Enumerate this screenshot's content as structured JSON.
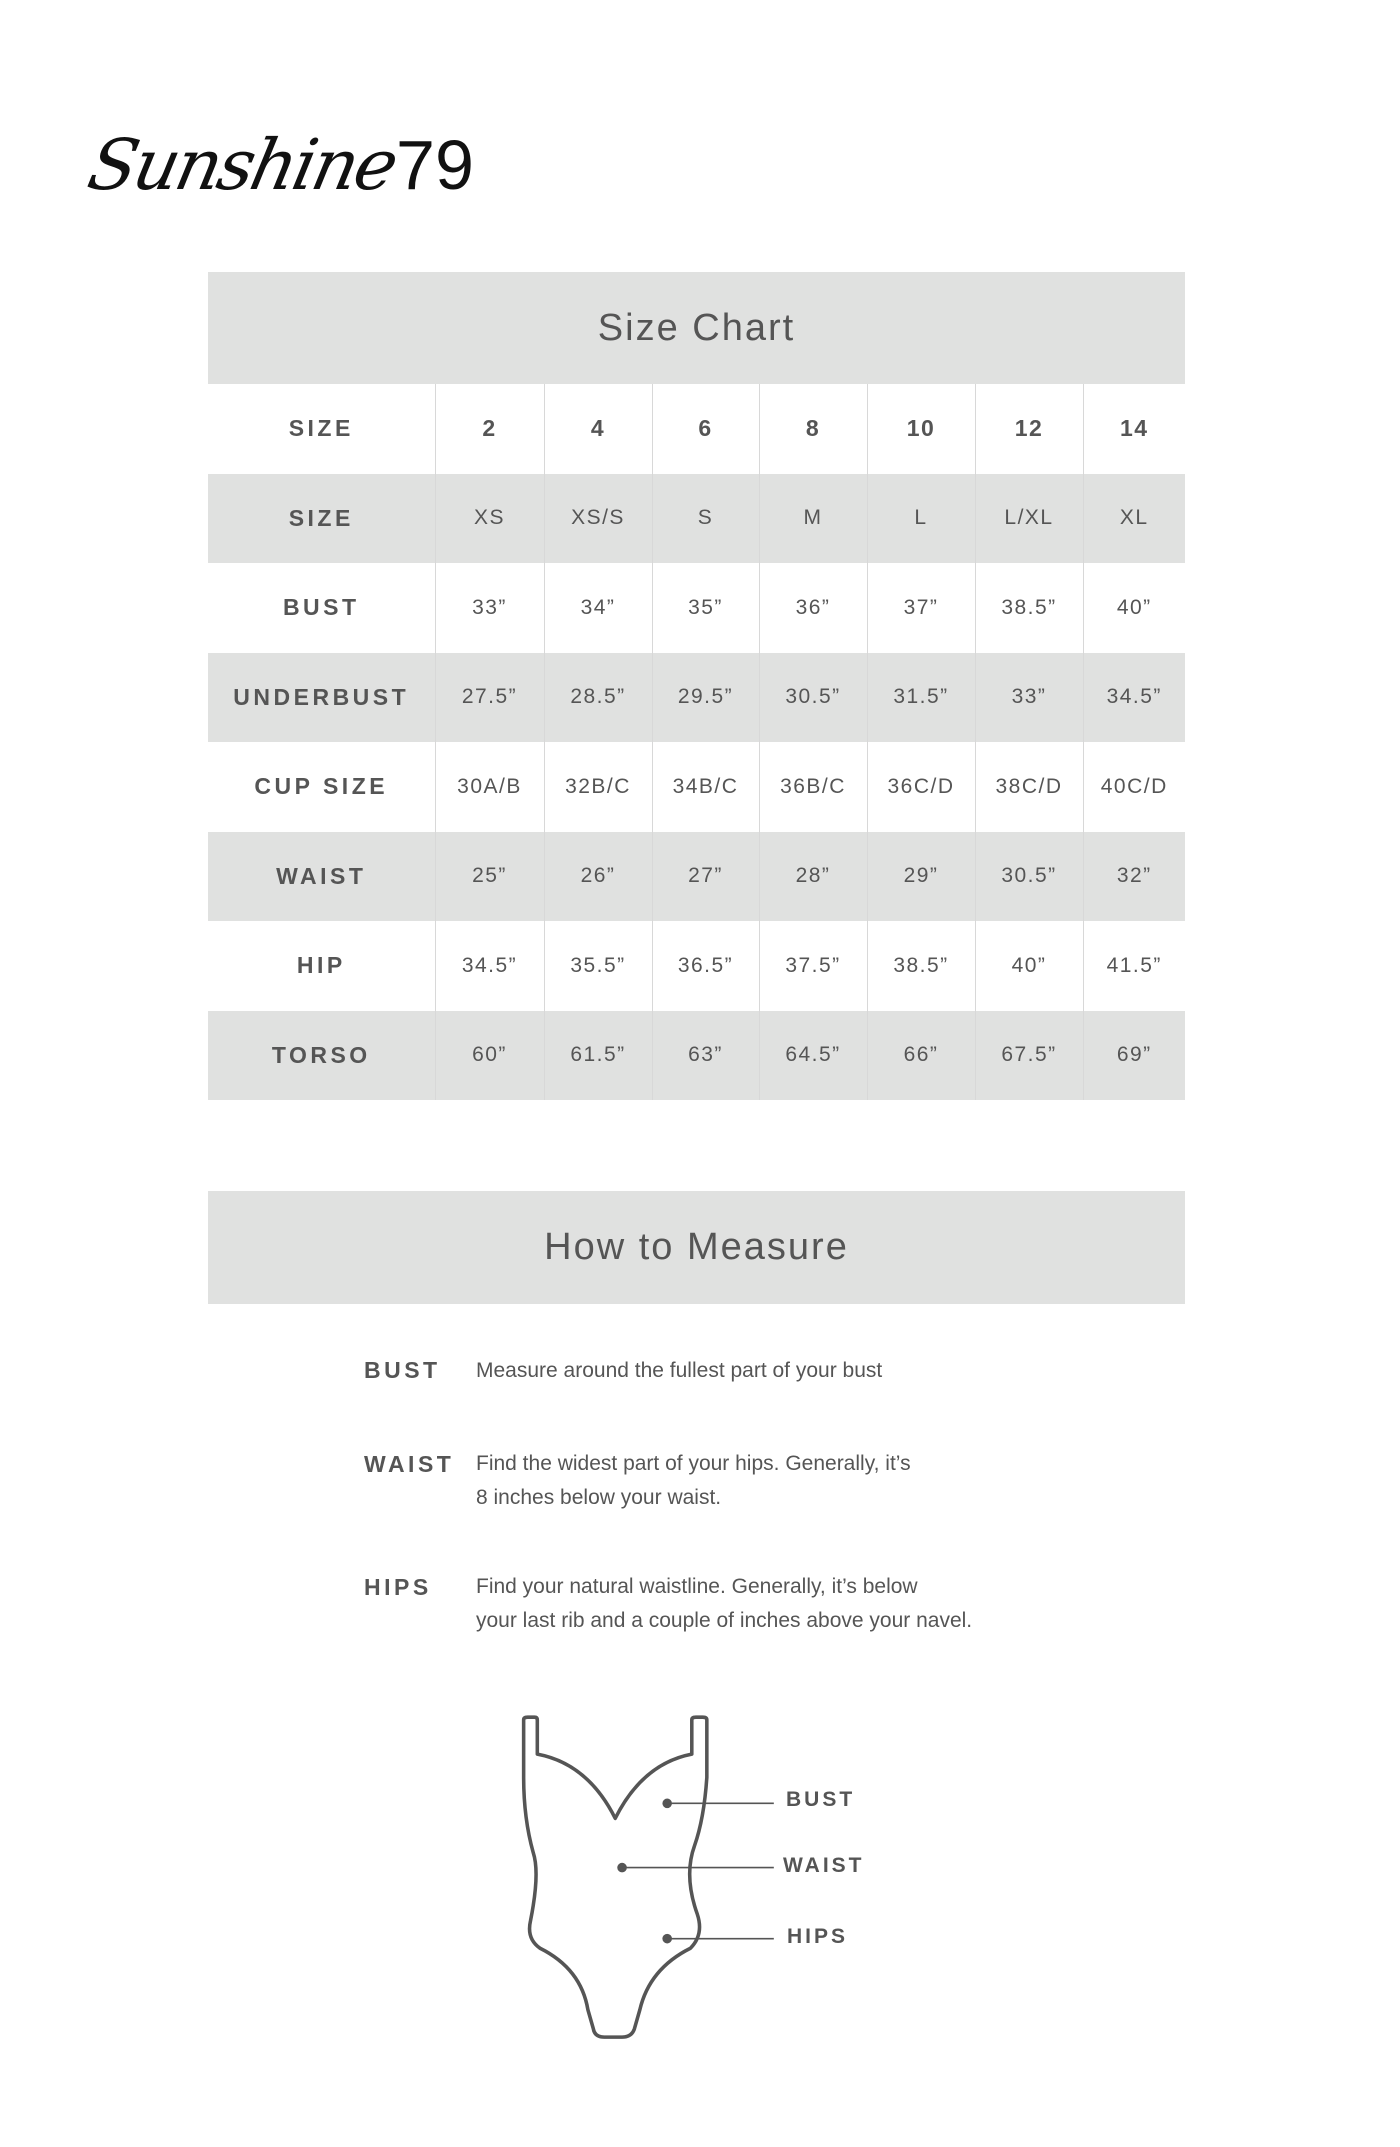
{
  "logo": {
    "script": "Sunshine",
    "number": "79"
  },
  "size_chart": {
    "title": "Size Chart",
    "header": [
      "SIZE",
      "2",
      "4",
      "6",
      "8",
      "10",
      "12",
      "14"
    ],
    "rows": [
      [
        "SIZE",
        "XS",
        "XS/S",
        "S",
        "M",
        "L",
        "L/XL",
        "XL"
      ],
      [
        "BUST",
        "33”",
        "34”",
        "35”",
        "36”",
        "37”",
        "38.5”",
        "40”"
      ],
      [
        "UNDERBUST",
        "27.5”",
        "28.5”",
        "29.5”",
        "30.5”",
        "31.5”",
        "33”",
        "34.5”"
      ],
      [
        "CUP SIZE",
        "30A/B",
        "32B/C",
        "34B/C",
        "36B/C",
        "36C/D",
        "38C/D",
        "40C/D"
      ],
      [
        "WAIST",
        "25”",
        "26”",
        "27”",
        "28”",
        "29”",
        "30.5”",
        "32”"
      ],
      [
        "HIP",
        "34.5”",
        "35.5”",
        "36.5”",
        "37.5”",
        "38.5”",
        "40”",
        "41.5”"
      ],
      [
        "TORSO",
        "60”",
        "61.5”",
        "63”",
        "64.5”",
        "66”",
        "67.5”",
        "69”"
      ]
    ]
  },
  "how_to_measure": {
    "title": "How to Measure",
    "items": [
      {
        "label": "BUST",
        "lines": [
          "Measure around the fullest part of your bust"
        ]
      },
      {
        "label": "WAIST",
        "lines": [
          "Find the widest part of your hips. Generally, it’s",
          "8 inches below your waist."
        ]
      },
      {
        "label": "HIPS",
        "lines": [
          "Find your natural waistline. Generally, it’s below",
          "your last rib and a couple of inches above your navel."
        ]
      }
    ]
  },
  "figure": {
    "labels": [
      "BUST",
      "WAIST",
      "HIPS"
    ],
    "icon": "swimsuit-outline-icon"
  },
  "colors": {
    "band": "#e0e1e0",
    "text": "#555555"
  }
}
